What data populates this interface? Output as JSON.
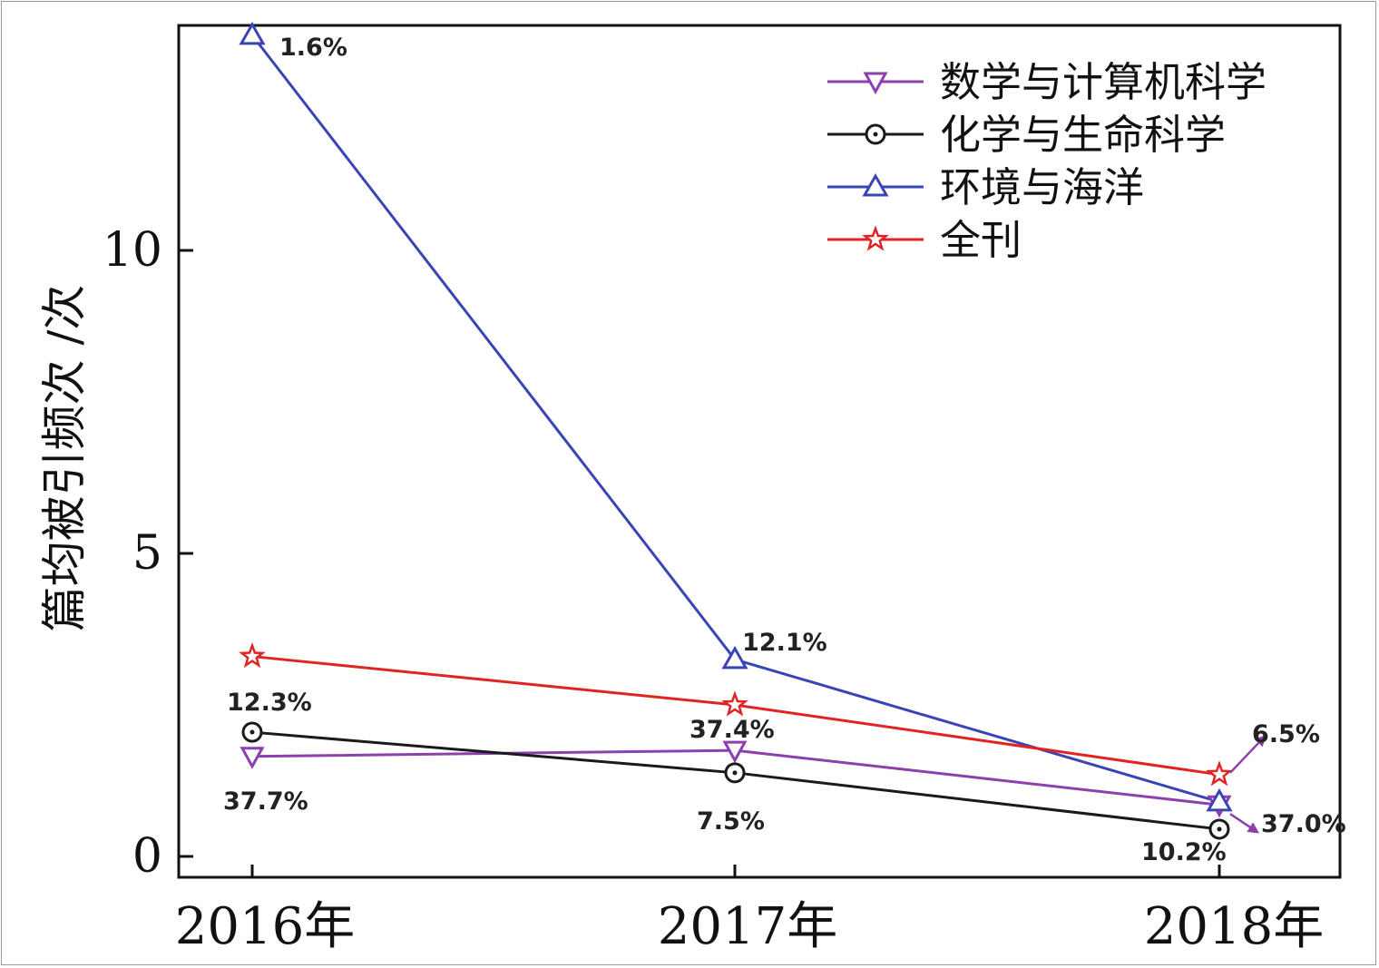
{
  "chart_data": {
    "type": "line",
    "title": "",
    "xlabel": "",
    "ylabel": "篇均被引频次 /次",
    "categories": [
      "2016年",
      "2017年",
      "2018年"
    ],
    "ylim": [
      -0.3,
      13.8
    ],
    "yticks": [
      0,
      5,
      10
    ],
    "grid": false,
    "legend_position": "top-right",
    "series": [
      {
        "name": "数学与计算机科学",
        "marker": "triangle-down",
        "color": "#8e3fae",
        "values": [
          1.65,
          1.75,
          0.85
        ],
        "labels": [
          "37.7%",
          "37.4%",
          "37.0%"
        ]
      },
      {
        "name": "化学与生命科学",
        "marker": "circle-dot",
        "color": "#1a1a1a",
        "values": [
          2.05,
          1.38,
          0.45
        ],
        "labels": [
          "12.3%",
          "7.5%",
          "10.2%"
        ]
      },
      {
        "name": "环境与海洋",
        "marker": "triangle-up",
        "color": "#3a45b5",
        "values": [
          13.55,
          3.25,
          0.9
        ],
        "labels": [
          "1.6%",
          "12.1%",
          ""
        ]
      },
      {
        "name": "全刊",
        "marker": "star",
        "color": "#e02424",
        "values": [
          3.3,
          2.5,
          1.35
        ],
        "labels": [
          "",
          "",
          "6.5%"
        ]
      }
    ]
  }
}
